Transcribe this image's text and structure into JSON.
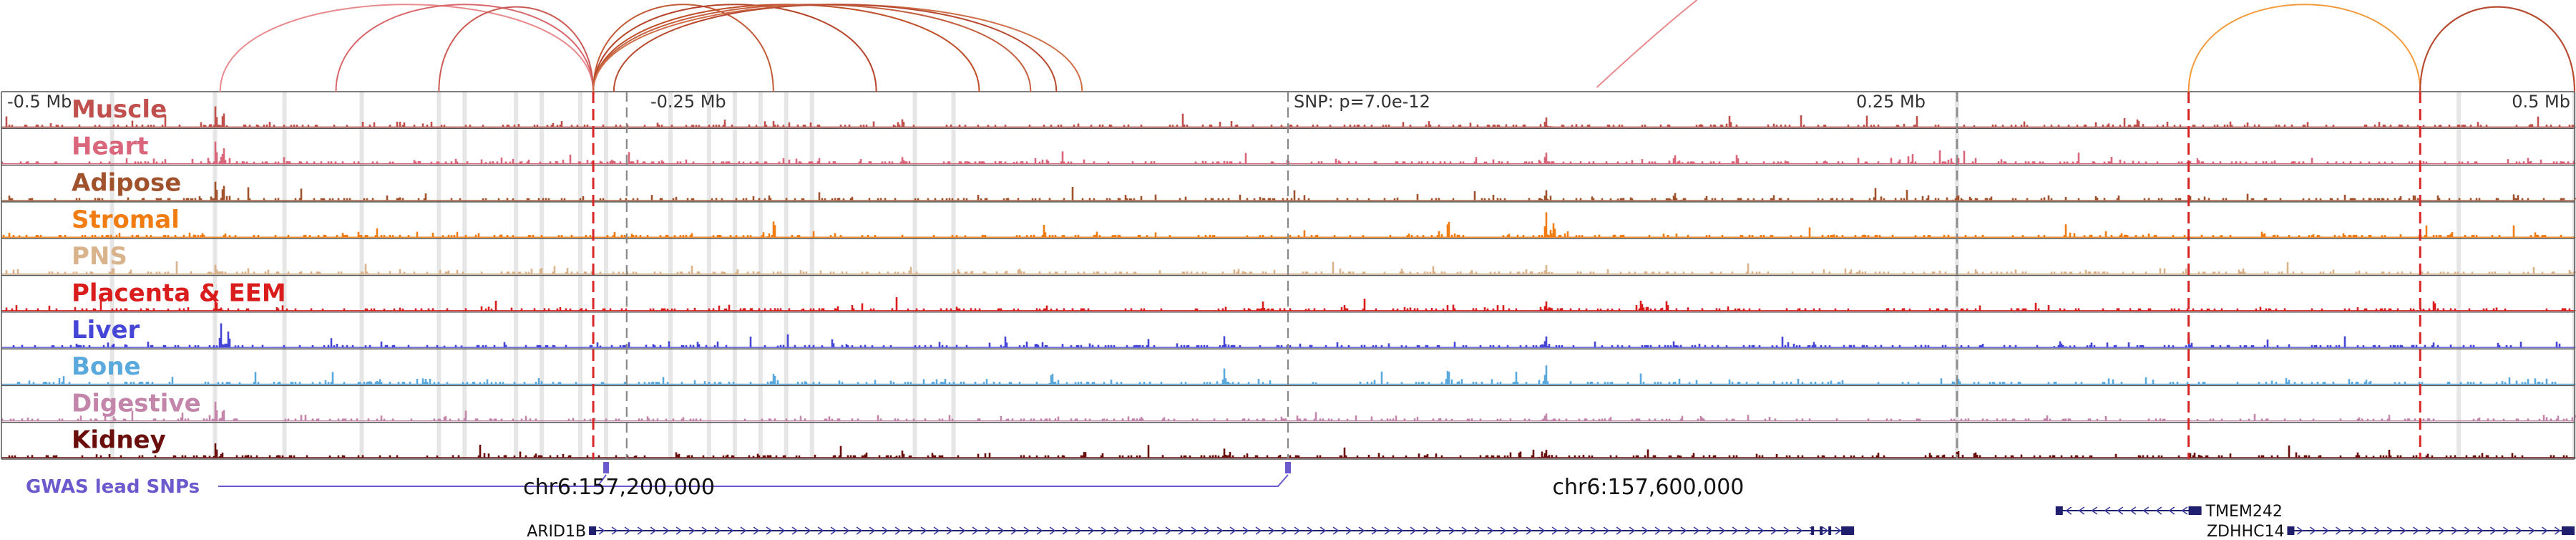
{
  "chart_data": {
    "type": "area",
    "title": "",
    "genome_axis": {
      "relative_ticks": [
        {
          "pos": -0.5,
          "label": "-0.5 Mb"
        },
        {
          "pos": -0.25,
          "label": "-0.25 Mb"
        },
        {
          "pos": 0.25,
          "label": "0.25 Mb"
        },
        {
          "pos": 0.5,
          "label": "0.5 Mb"
        }
      ],
      "range_mb": [
        -0.5,
        0.5
      ],
      "coordinate_labels": [
        {
          "text": "chr6:157,200,000",
          "pos": -0.26
        },
        {
          "text": "chr6:157,600,000",
          "pos": 0.14
        }
      ]
    },
    "snp": {
      "label": "SNP: p=7.0e-12",
      "pos": 0.0
    },
    "gwas_label": "GWAS lead SNPs",
    "gwas_snps": [
      -0.265,
      0.0
    ],
    "tracks": [
      {
        "name": "Muscle",
        "color": "#c0504d",
        "peaks": [
          [
            -0.417,
            0.9
          ],
          [
            -0.414,
            0.7
          ],
          [
            -0.15,
            0.35
          ],
          [
            0.1,
            0.45
          ],
          [
            0.33,
            0.4
          ]
        ]
      },
      {
        "name": "Heart",
        "color": "#d9667a",
        "peaks": [
          [
            -0.417,
            0.95
          ],
          [
            -0.414,
            0.8
          ],
          [
            -0.15,
            0.3
          ],
          [
            0.1,
            0.55
          ],
          [
            0.15,
            0.4
          ],
          [
            0.26,
            0.35
          ]
        ]
      },
      {
        "name": "Adipose",
        "color": "#a0522d",
        "peaks": [
          [
            -0.417,
            1.0
          ],
          [
            -0.414,
            0.85
          ],
          [
            0.1,
            0.5
          ],
          [
            0.15,
            0.35
          ],
          [
            0.26,
            0.3
          ]
        ]
      },
      {
        "name": "Stromal",
        "color": "#f07c12",
        "peaks": [
          [
            -0.2,
            0.75
          ],
          [
            -0.095,
            0.5
          ],
          [
            0.062,
            0.85
          ],
          [
            0.1,
            1.0
          ],
          [
            0.103,
            0.7
          ]
        ]
      },
      {
        "name": "PNS",
        "color": "#d9b38c",
        "peaks": [
          [
            -0.417,
            0.4
          ],
          [
            -0.147,
            0.3
          ],
          [
            0.1,
            0.35
          ]
        ]
      },
      {
        "name": "Placenta & EEM",
        "color": "#d91c1c",
        "peaks": [
          [
            -0.417,
            0.7
          ],
          [
            -0.01,
            0.35
          ],
          [
            0.1,
            0.45
          ],
          [
            0.137,
            0.5
          ],
          [
            0.147,
            0.45
          ]
        ]
      },
      {
        "name": "Liver",
        "color": "#4646d6",
        "peaks": [
          [
            -0.415,
            1.0
          ],
          [
            -0.412,
            0.85
          ],
          [
            -0.11,
            0.45
          ],
          [
            -0.025,
            0.4
          ],
          [
            0.1,
            0.5
          ],
          [
            0.3,
            0.3
          ]
        ]
      },
      {
        "name": "Bone",
        "color": "#5aa9dd",
        "peaks": [
          [
            -0.2,
            0.6
          ],
          [
            -0.092,
            0.55
          ],
          [
            -0.025,
            0.7
          ],
          [
            0.062,
            0.75
          ],
          [
            0.1,
            0.85
          ],
          [
            0.26,
            0.35
          ]
        ]
      },
      {
        "name": "Digestive",
        "color": "#c386aa",
        "peaks": [
          [
            -0.417,
            0.85
          ],
          [
            -0.414,
            0.6
          ],
          [
            0.1,
            0.35
          ]
        ]
      },
      {
        "name": "Kidney",
        "color": "#6a0d0d",
        "peaks": [
          [
            -0.417,
            0.75
          ],
          [
            -0.15,
            0.3
          ],
          [
            -0.025,
            0.35
          ],
          [
            0.1,
            0.4
          ],
          [
            0.26,
            0.35
          ]
        ]
      }
    ],
    "highlight_positions": [
      -0.457,
      -0.417,
      -0.39,
      -0.36,
      -0.33,
      -0.32,
      -0.3,
      -0.29,
      -0.275,
      -0.265,
      -0.24,
      -0.225,
      -0.215,
      -0.205,
      -0.195,
      -0.185,
      -0.145,
      -0.13,
      0.26,
      0.455,
      0.5
    ],
    "red_dashed_lines": [
      -0.27,
      0.35,
      0.44
    ],
    "gray_dashed_lines": [
      -0.257,
      0.0,
      0.26
    ],
    "genes": [
      {
        "name": "ARID1B",
        "start": -0.27,
        "end": 0.22,
        "strand": "+",
        "row": 1
      },
      {
        "name": "TMEM242",
        "start": 0.3,
        "end": 0.355,
        "strand": "-",
        "row": 0
      },
      {
        "name": "ZDHHC14",
        "start": 0.39,
        "end": 0.5,
        "strand": "+",
        "row": 1
      }
    ],
    "loops": [
      {
        "from": -0.415,
        "to": -0.27
      },
      {
        "from": -0.37,
        "to": -0.27
      },
      {
        "from": -0.33,
        "to": -0.27
      },
      {
        "from": -0.27,
        "to": -0.2
      },
      {
        "from": -0.27,
        "to": -0.16
      },
      {
        "from": -0.27,
        "to": -0.12
      },
      {
        "from": -0.27,
        "to": -0.1
      },
      {
        "from": -0.27,
        "to": -0.08
      },
      {
        "from": -0.262,
        "to": -0.09
      },
      {
        "from": 0.35,
        "to": 0.44
      },
      {
        "from": 0.44,
        "to": 0.5
      },
      {
        "from": 0.44,
        "to": 0.5
      }
    ],
    "open_loop_from": 0.12
  }
}
